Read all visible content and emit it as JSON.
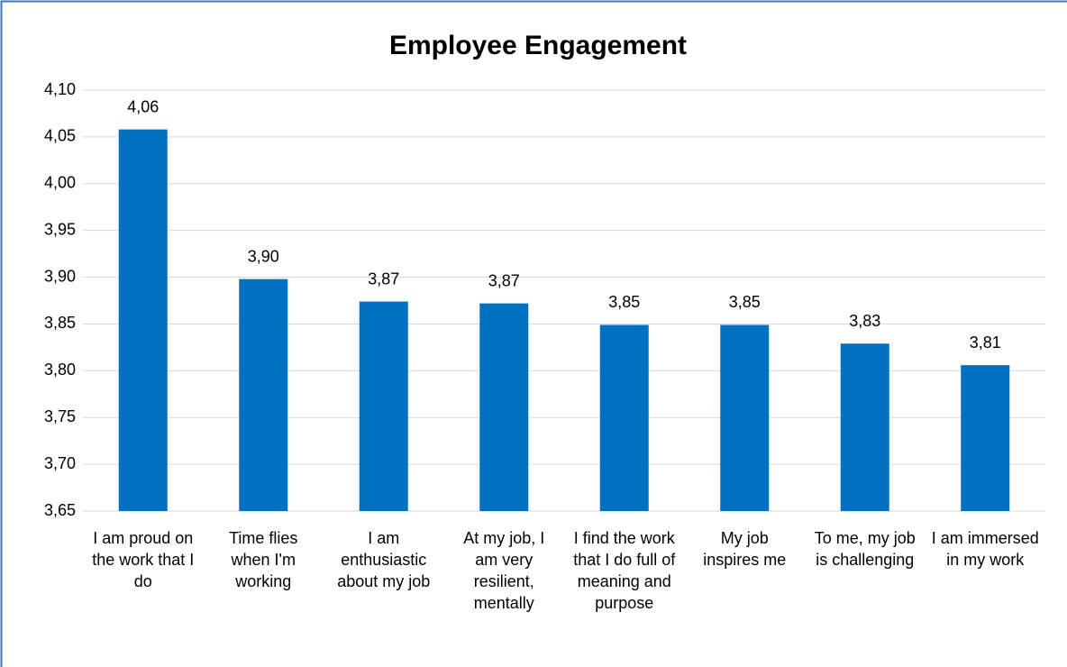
{
  "chart_data": {
    "type": "bar",
    "title": "Employee Engagement",
    "categories": [
      "I am proud on the work that I do",
      "Time flies when I'm working",
      "I am enthusiastic about my job",
      "At my job, I am very resilient, mentally",
      "I find the work that I do full of meaning and purpose",
      "My job inspires me",
      "To me, my job is challenging",
      "I am immersed in my work"
    ],
    "values": [
      4.058,
      3.898,
      3.874,
      3.872,
      3.849,
      3.849,
      3.829,
      3.806
    ],
    "value_labels": [
      "4,06",
      "3,90",
      "3,87",
      "3,87",
      "3,85",
      "3,85",
      "3,83",
      "3,81"
    ],
    "color": "#0070c0",
    "ylim": [
      3.65,
      4.1
    ],
    "yticks": [
      {
        "value": 3.65,
        "label": "3,65"
      },
      {
        "value": 3.7,
        "label": "3,70"
      },
      {
        "value": 3.75,
        "label": "3,75"
      },
      {
        "value": 3.8,
        "label": "3,80"
      },
      {
        "value": 3.85,
        "label": "3,85"
      },
      {
        "value": 3.9,
        "label": "3,90"
      },
      {
        "value": 3.95,
        "label": "3,95"
      },
      {
        "value": 4.0,
        "label": "4,00"
      },
      {
        "value": 4.05,
        "label": "4,05"
      },
      {
        "value": 4.1,
        "label": "4,10"
      }
    ],
    "grid": true
  }
}
